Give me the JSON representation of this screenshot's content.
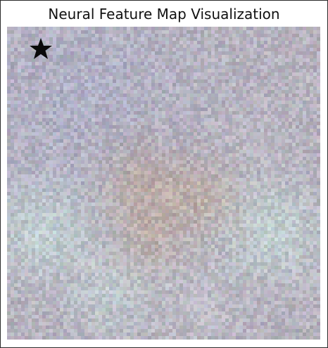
{
  "figure": {
    "title": "Neural Feature Map Visualization"
  },
  "feature_map": {
    "grid_size": 89,
    "base_color": "#b8b4bc",
    "palette": [
      "#b4aeb8",
      "#a8aab8",
      "#b0bcc0",
      "#c4c8cc",
      "#9caea8",
      "#a29a92",
      "#c8d8d4"
    ]
  },
  "marker": {
    "icon": "star-icon",
    "color": "#0a0a0a"
  }
}
